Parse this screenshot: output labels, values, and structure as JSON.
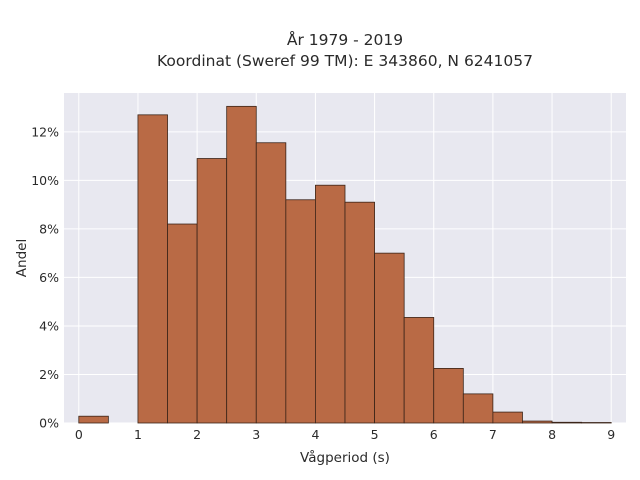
{
  "chart_data": {
    "type": "bar",
    "title_lines": [
      "År 1979 - 2019",
      "Koordinat (Sweref 99 TM): E 343860, N 6241057"
    ],
    "xlabel": "Vågperiod (s)",
    "ylabel": "Andel",
    "xlim": [
      -0.25,
      9.25
    ],
    "ylim": [
      0,
      13.6
    ],
    "xticks": [
      0,
      1,
      2,
      3,
      4,
      5,
      6,
      7,
      8,
      9
    ],
    "yticks": [
      0,
      2,
      4,
      6,
      8,
      10,
      12
    ],
    "ytick_suffix": "%",
    "grid": true,
    "bin_width": 0.5,
    "bins": [
      {
        "x0": 0.0,
        "value": 0.28
      },
      {
        "x0": 1.0,
        "value": 12.7
      },
      {
        "x0": 1.5,
        "value": 8.2
      },
      {
        "x0": 2.0,
        "value": 10.9
      },
      {
        "x0": 2.5,
        "value": 13.05
      },
      {
        "x0": 3.0,
        "value": 11.55
      },
      {
        "x0": 3.5,
        "value": 9.2
      },
      {
        "x0": 4.0,
        "value": 9.8
      },
      {
        "x0": 4.5,
        "value": 9.1
      },
      {
        "x0": 5.0,
        "value": 7.0
      },
      {
        "x0": 5.5,
        "value": 4.35
      },
      {
        "x0": 6.0,
        "value": 2.25
      },
      {
        "x0": 6.5,
        "value": 1.2
      },
      {
        "x0": 7.0,
        "value": 0.45
      },
      {
        "x0": 7.5,
        "value": 0.08
      },
      {
        "x0": 8.0,
        "value": 0.03
      },
      {
        "x0": 8.5,
        "value": 0.02
      }
    ],
    "colors": {
      "bar_fill": "#b96a45",
      "bar_stroke": "#3b2418",
      "plot_bg": "#e8e8f0",
      "grid": "#ffffff"
    }
  }
}
